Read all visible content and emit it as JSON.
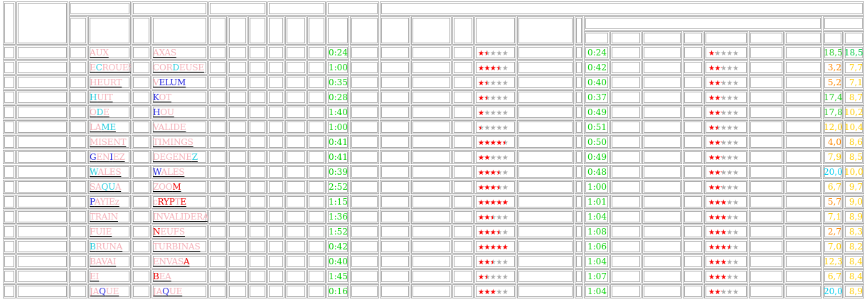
{
  "colors": {
    "grid": "#a8a8a8",
    "time": "#00d000",
    "star_on": "#ff0000",
    "star_off": "#aaaaaa",
    "word_default": "#999999",
    "pink": "#f4b0b8",
    "cyan": "#22ccdd",
    "blue": "#2222dd",
    "red": "#ee0000",
    "score1": {
      "hi": "#00ccee",
      "mid": "#ffcc00",
      "good": "#22cc22",
      "low": "#ff8800",
      "dim": "#ff8800"
    },
    "score2": {
      "hi": "#00cc44",
      "mid": "#ffcc00"
    }
  },
  "rows": [
    {
      "w1": [
        [
          "AUX",
          "pink"
        ]
      ],
      "w2": [
        [
          "AXAS",
          "pink"
        ]
      ],
      "t1": "0:24",
      "s1": 0.3,
      "t2": "0:24",
      "s2": 0.25,
      "sc1": "18,5",
      "sc1c": "good",
      "sc2": "18,5",
      "sc2c": "hi"
    },
    {
      "w1": [
        [
          "E",
          "pink"
        ],
        [
          "C",
          "cyan"
        ],
        [
          "ROUES",
          "pink"
        ]
      ],
      "w2": [
        [
          "COR",
          "pink"
        ],
        [
          "D",
          "cyan"
        ],
        [
          "EUSE",
          "pink"
        ]
      ],
      "t1": "1:00",
      "s1": 0.7,
      "t2": "0:42",
      "s2": 0.45,
      "sc1": "3,2",
      "sc1c": "low",
      "sc2": "7,7",
      "sc2c": "mid"
    },
    {
      "w1": [
        [
          "HEURT",
          "pink"
        ]
      ],
      "w2": [
        [
          "V",
          "pink"
        ],
        [
          "ELUM",
          "blue"
        ]
      ],
      "t1": "0:35",
      "s1": 0.3,
      "t2": "0:40",
      "s2": 0.45,
      "sc1": "5,2",
      "sc1c": "low",
      "sc2": "7,1",
      "sc2c": "mid"
    },
    {
      "w1": [
        [
          "H",
          "cyan"
        ],
        [
          "UIT",
          "pink"
        ]
      ],
      "w2": [
        [
          "K",
          "blue"
        ],
        [
          "OT",
          "pink"
        ]
      ],
      "t1": "0:28",
      "s1": 0.3,
      "t2": "0:37",
      "s2": 0.45,
      "sc1": "17,4",
      "sc1c": "good",
      "sc2": "8,7",
      "sc2c": "mid"
    },
    {
      "w1": [
        [
          "O",
          "pink"
        ],
        [
          "D",
          "cyan"
        ],
        [
          "E",
          "pink"
        ]
      ],
      "w2": [
        [
          "H",
          "blue"
        ],
        [
          "OU",
          "pink"
        ]
      ],
      "t1": "1:40",
      "s1": 0.2,
      "t2": "0:49",
      "s2": 0.45,
      "sc1": "17,8",
      "sc1c": "good",
      "sc2": "10,2",
      "sc2c": "mid"
    },
    {
      "w1": [
        [
          "LA",
          "pink"
        ],
        [
          "ME",
          "cyan"
        ]
      ],
      "w2": [
        [
          "VALIDE",
          "pink"
        ]
      ],
      "t1": "1:00",
      "s1": 0.1,
      "t2": "0:51",
      "s2": 0.3,
      "sc1": "12,0",
      "sc1c": "mid",
      "sc2": "10,4",
      "sc2c": "mid"
    },
    {
      "w1": [
        [
          "MISENT",
          "pink"
        ]
      ],
      "w2": [
        [
          "TIMINGS",
          "pink"
        ]
      ],
      "t1": "0:41",
      "s1": 0.9,
      "t2": "0:50",
      "s2": 0.45,
      "sc1": "4,0",
      "sc1c": "low",
      "sc2": "8,6",
      "sc2c": "mid"
    },
    {
      "w1": [
        [
          "G",
          "blue"
        ],
        [
          "EN",
          "pink"
        ],
        [
          "I",
          "blue"
        ],
        [
          "EZ",
          "pink"
        ]
      ],
      "w2": [
        [
          "DEGENE",
          "pink"
        ],
        [
          "Z",
          "cyan"
        ]
      ],
      "t1": "0:41",
      "s1": 0.4,
      "t2": "0:49",
      "s2": 0.45,
      "sc1": "7,9",
      "sc1c": "mid",
      "sc2": "8,5",
      "sc2c": "mid"
    },
    {
      "w1": [
        [
          "W",
          "cyan"
        ],
        [
          "ALES",
          "pink"
        ]
      ],
      "w2": [
        [
          "W",
          "blue"
        ],
        [
          "ALES",
          "pink"
        ]
      ],
      "t1": "0:39",
      "s1": 0.7,
      "t2": "0:48",
      "s2": 0.45,
      "sc1": "20,0",
      "sc1c": "hi",
      "sc2": "10,0",
      "sc2c": "mid"
    },
    {
      "w1": [
        [
          "SA",
          "pink"
        ],
        [
          "QU",
          "cyan"
        ],
        [
          "A",
          "pink"
        ]
      ],
      "w2": [
        [
          "ZOO",
          "pink"
        ],
        [
          "M",
          "red"
        ]
      ],
      "t1": "2:52",
      "s1": 0.7,
      "t2": "1:00",
      "s2": 0.45,
      "sc1": "6,7",
      "sc1c": "mid",
      "sc2": "9,7",
      "sc2c": "mid"
    },
    {
      "w1": [
        [
          "P",
          "blue"
        ],
        [
          "AYIE",
          "pink"
        ],
        [
          "z",
          "pink"
        ]
      ],
      "w2": [
        [
          "c",
          "pink"
        ],
        [
          "RYP",
          "red"
        ],
        [
          "T",
          "pink"
        ],
        [
          "E",
          "red"
        ]
      ],
      "t1": "1:15",
      "s1": 1.0,
      "t2": "1:01",
      "s2": 0.6,
      "sc1": "5,7",
      "sc1c": "low",
      "sc2": "9,0",
      "sc2c": "mid"
    },
    {
      "w1": [
        [
          "TRAIN",
          "pink"
        ]
      ],
      "w2": [
        [
          "INVALIDERA",
          "pink"
        ]
      ],
      "t1": "1:36",
      "s1": 0.5,
      "t2": "1:04",
      "s2": 0.6,
      "sc1": "7,1",
      "sc1c": "mid",
      "sc2": "8,9",
      "sc2c": "mid"
    },
    {
      "w1": [
        [
          "FUIE",
          "pink"
        ]
      ],
      "w2": [
        [
          "N",
          "red"
        ],
        [
          "EUFS",
          "pink"
        ]
      ],
      "t1": "1:52",
      "s1": 0.7,
      "t2": "1:08",
      "s2": 0.6,
      "sc1": "2,7",
      "sc1c": "low",
      "sc2": "8,3",
      "sc2c": "mid"
    },
    {
      "w1": [
        [
          "B",
          "cyan"
        ],
        [
          "RUNA",
          "pink"
        ]
      ],
      "w2": [
        [
          "TURBINAS",
          "pink"
        ]
      ],
      "t1": "0:42",
      "s1": 1.0,
      "t2": "1:06",
      "s2": 0.7,
      "sc1": "7,0",
      "sc1c": "mid",
      "sc2": "8,2",
      "sc2c": "mid"
    },
    {
      "w1": [
        [
          "BAVAI",
          "pink"
        ]
      ],
      "w2": [
        [
          "ENVAS",
          "pink"
        ],
        [
          "A",
          "red"
        ]
      ],
      "t1": "0:40",
      "s1": 0.5,
      "t2": "1:04",
      "s2": 0.6,
      "sc1": "12,3",
      "sc1c": "mid",
      "sc2": "8,4",
      "sc2c": "mid"
    },
    {
      "w1": [
        [
          "EI",
          "pink"
        ]
      ],
      "w2": [
        [
          "B",
          "red"
        ],
        [
          "EA",
          "pink"
        ]
      ],
      "t1": "1:45",
      "s1": 0.3,
      "t2": "1:07",
      "s2": 0.6,
      "sc1": "6,7",
      "sc1c": "mid",
      "sc2": "8,4",
      "sc2c": "mid"
    },
    {
      "w1": [
        [
          "JA",
          "pink"
        ],
        [
          "Q",
          "blue"
        ],
        [
          "UE",
          "pink"
        ]
      ],
      "w2": [
        [
          "JA",
          "pink"
        ],
        [
          "Q",
          "blue"
        ],
        [
          "UE",
          "pink"
        ]
      ],
      "t1": "0:16",
      "s1": 0.6,
      "t2": "1:04",
      "s2": 0.45,
      "sc1": "20,0",
      "sc1c": "hi",
      "sc2": "8,9",
      "sc2c": "mid"
    }
  ]
}
